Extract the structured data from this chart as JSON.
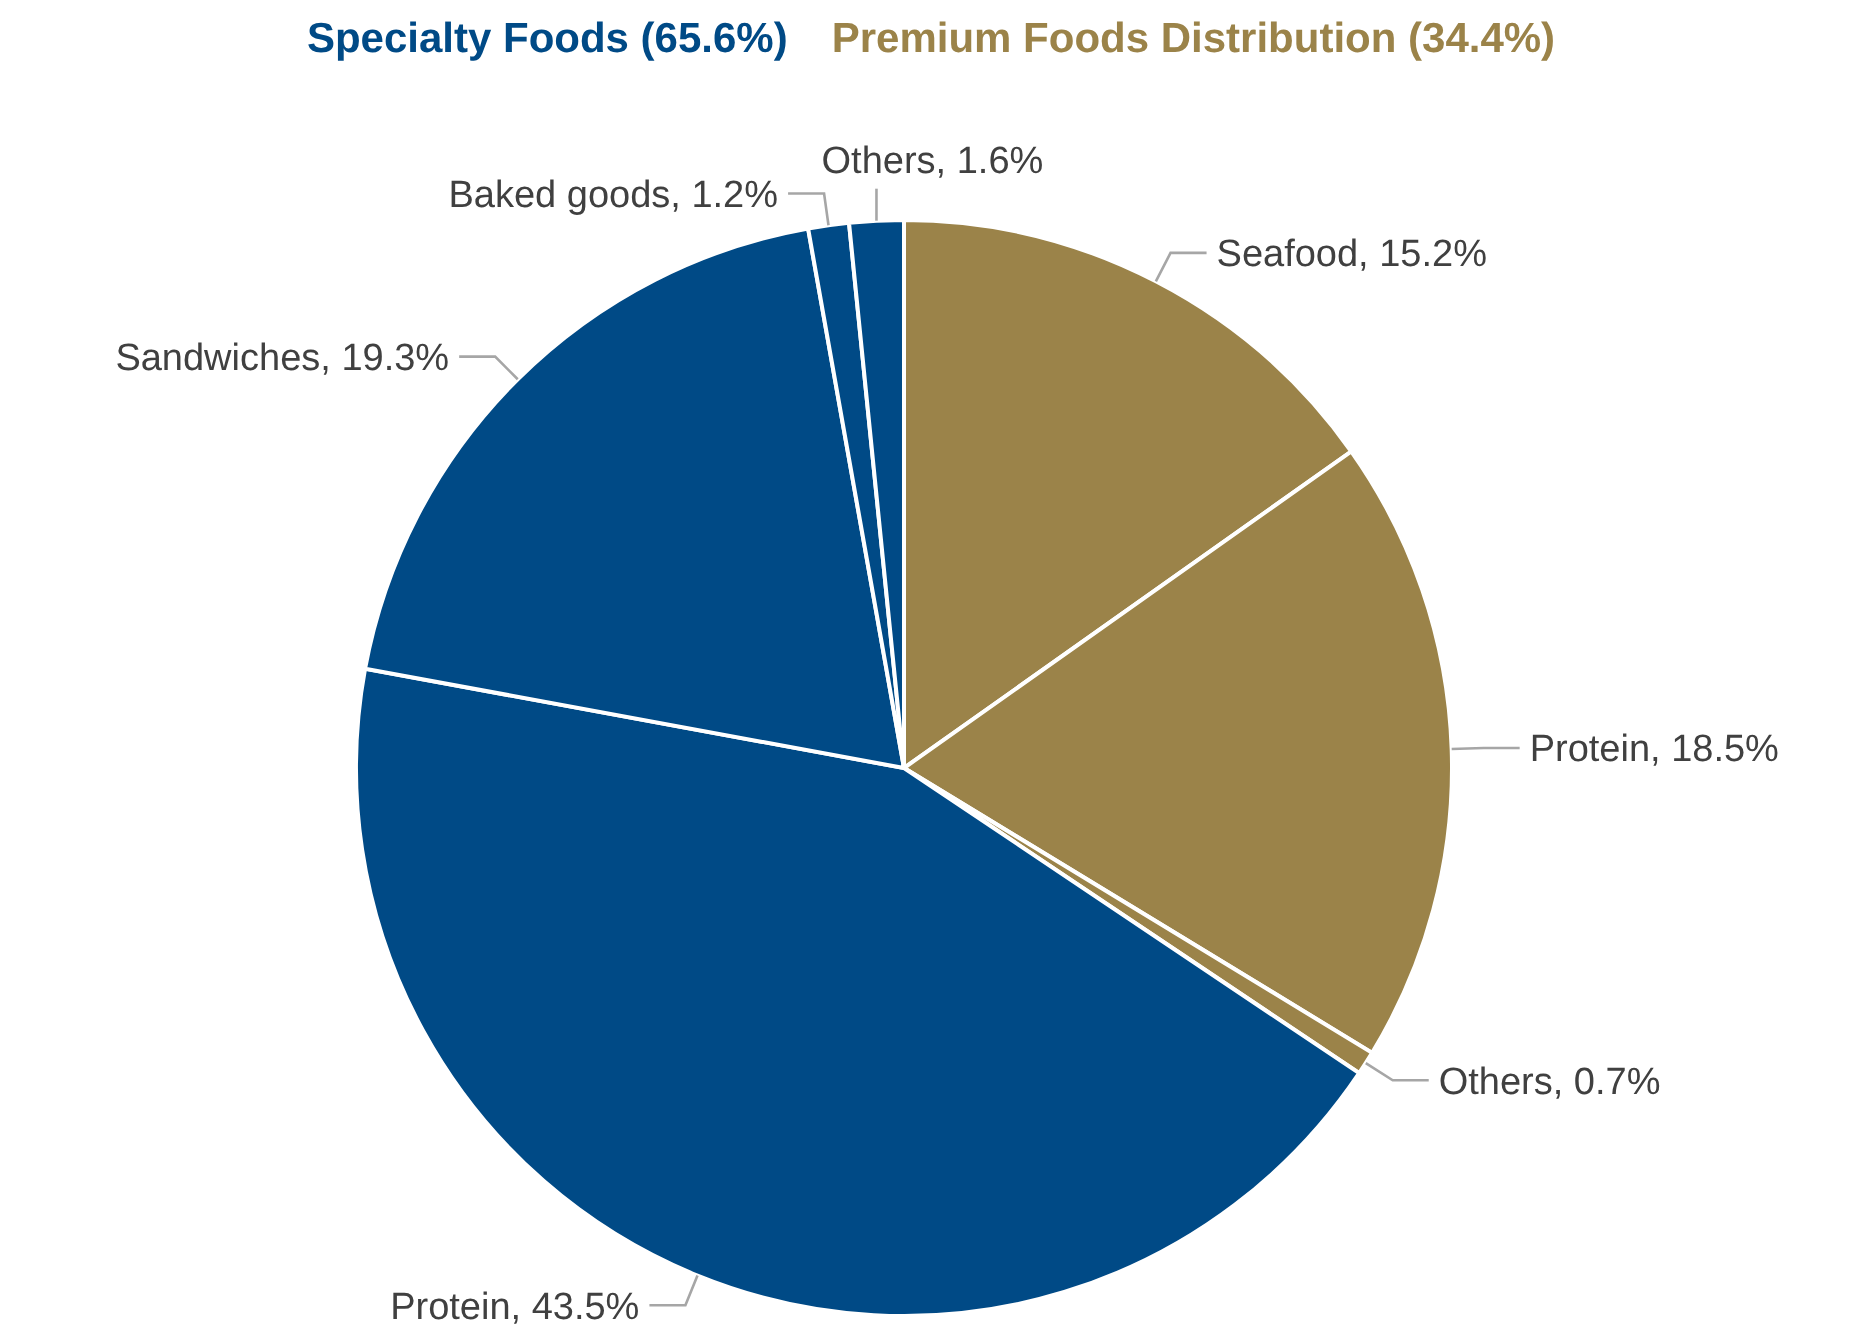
{
  "chart_data": {
    "type": "pie",
    "categories": [
      "Seafood",
      "Protein",
      "Others",
      "Protein",
      "Sandwiches",
      "Baked goods",
      "Others"
    ],
    "values": [
      15.2,
      18.5,
      0.7,
      43.5,
      19.3,
      1.2,
      1.6
    ],
    "colors": [
      "#9b8349",
      "#9b8349",
      "#9b8349",
      "#004a86",
      "#004a86",
      "#004a86",
      "#004a86"
    ],
    "value_labels": [
      "15.2%",
      "18.5%",
      "0.7%",
      "43.5%",
      "19.3%",
      "1.2%",
      "1.6%"
    ],
    "annotations": [
      "Specialty Foods (65.6%)",
      "Premium Foods Distribution (34.4%)"
    ]
  }
}
